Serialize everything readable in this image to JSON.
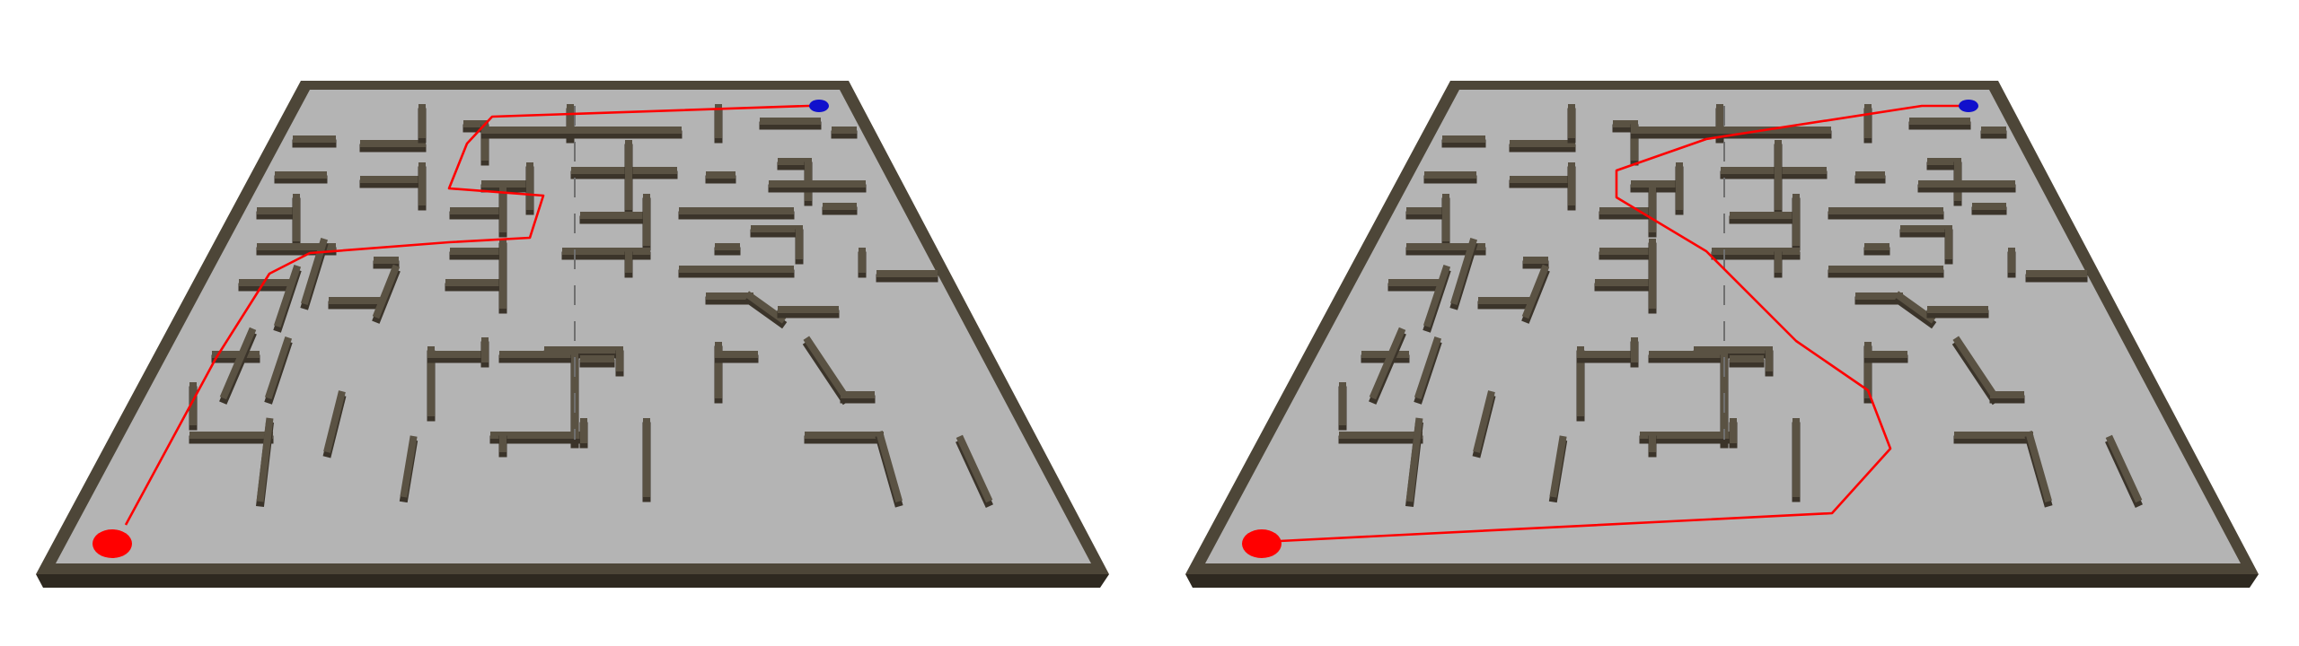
{
  "scene": {
    "background": "#ffffff",
    "colors": {
      "floor": "#b4b4b4",
      "wall_top": "#5a5243",
      "wall_side": "#3b342a",
      "frame_top": "#4d4638",
      "frame_side": "#2e2920",
      "path": "#ff0000",
      "start_marker": "#ff0000",
      "goal_marker": "#1010cc"
    },
    "panels": [
      {
        "id": "maze-left",
        "marker_start": "start-marker-red",
        "marker_goal": "goal-marker-blue"
      },
      {
        "id": "maze-right",
        "marker_start": "start-marker-red",
        "marker_goal": "goal-marker-blue"
      }
    ]
  }
}
